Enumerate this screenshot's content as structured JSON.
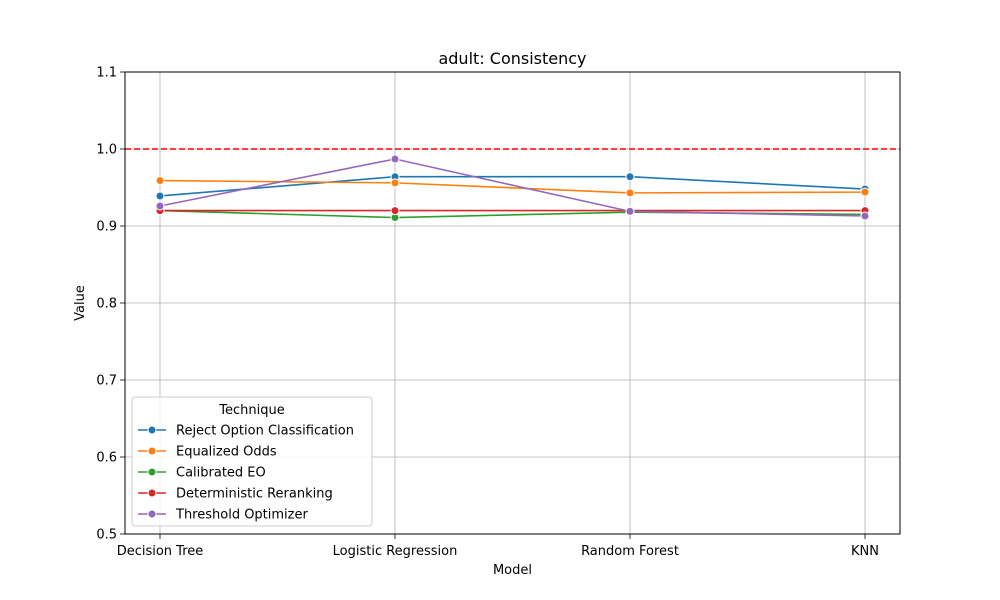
{
  "chart_data": {
    "type": "line",
    "title": "adult: Consistency",
    "xlabel": "Model",
    "ylabel": "Value",
    "categories": [
      "Decision Tree",
      "Logistic Regression",
      "Random Forest",
      "KNN"
    ],
    "ylim": [
      0.5,
      1.1
    ],
    "yticks": [
      "0.5",
      "0.6",
      "0.7",
      "0.8",
      "0.9",
      "1.0",
      "1.1"
    ],
    "grid": true,
    "reference_line": {
      "y": 1.0,
      "color": "#ff0000",
      "style": "dashed"
    },
    "legend": {
      "title": "Technique",
      "placement": "lower-left"
    },
    "series": [
      {
        "name": "Reject Option Classification",
        "color": "#1f77b4",
        "values": [
          0.939,
          0.964,
          0.964,
          0.948
        ]
      },
      {
        "name": "Equalized Odds",
        "color": "#ff7f0e",
        "values": [
          0.959,
          0.956,
          0.943,
          0.944
        ]
      },
      {
        "name": "Calibrated EO",
        "color": "#2ca02c",
        "values": [
          0.92,
          0.911,
          0.918,
          0.915
        ]
      },
      {
        "name": "Deterministic Reranking",
        "color": "#d62728",
        "values": [
          0.92,
          0.92,
          0.92,
          0.92
        ]
      },
      {
        "name": "Threshold Optimizer",
        "color": "#9467bd",
        "values": [
          0.926,
          0.987,
          0.919,
          0.913
        ]
      }
    ]
  }
}
